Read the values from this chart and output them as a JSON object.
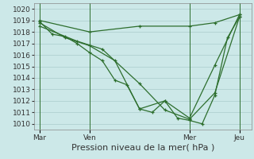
{
  "background_color": "#cce8e8",
  "grid_color": "#aacccc",
  "line_color": "#2d6e2d",
  "ylim": [
    1009.5,
    1020.5
  ],
  "yticks": [
    1010,
    1011,
    1012,
    1013,
    1014,
    1015,
    1016,
    1017,
    1018,
    1019,
    1020
  ],
  "xlabel": "Pression niveau de la mer( hPa )",
  "xlabel_fontsize": 8,
  "tick_fontsize": 6.5,
  "day_labels": [
    "Mar",
    "Ven",
    "Mer",
    "Jeu"
  ],
  "day_positions": [
    0,
    75,
    225,
    300
  ],
  "xlim": [
    -8,
    318
  ],
  "lines": [
    {
      "x": [
        0,
        19,
        38,
        56,
        75,
        94,
        113,
        131,
        150,
        169,
        188,
        207,
        225,
        244,
        263,
        282,
        300
      ],
      "y": [
        1018.9,
        1017.8,
        1017.6,
        1017.0,
        1016.2,
        1015.5,
        1013.8,
        1013.4,
        1011.3,
        1011.0,
        1012.0,
        1010.5,
        1010.3,
        1010.0,
        1012.5,
        1017.5,
        1019.3
      ]
    },
    {
      "x": [
        0,
        38,
        75,
        113,
        150,
        188,
        225,
        263,
        300
      ],
      "y": [
        1018.8,
        1017.5,
        1016.8,
        1015.5,
        1011.3,
        1012.0,
        1010.5,
        1015.1,
        1019.5
      ]
    },
    {
      "x": [
        0,
        56,
        94,
        150,
        188,
        225,
        263,
        300
      ],
      "y": [
        1018.5,
        1017.2,
        1016.5,
        1013.5,
        1011.2,
        1010.4,
        1012.7,
        1019.3
      ]
    },
    {
      "x": [
        0,
        75,
        150,
        225,
        263,
        300
      ],
      "y": [
        1019.0,
        1018.0,
        1018.5,
        1018.5,
        1018.8,
        1019.5
      ]
    }
  ],
  "vline_positions": [
    0,
    75,
    225,
    300
  ]
}
